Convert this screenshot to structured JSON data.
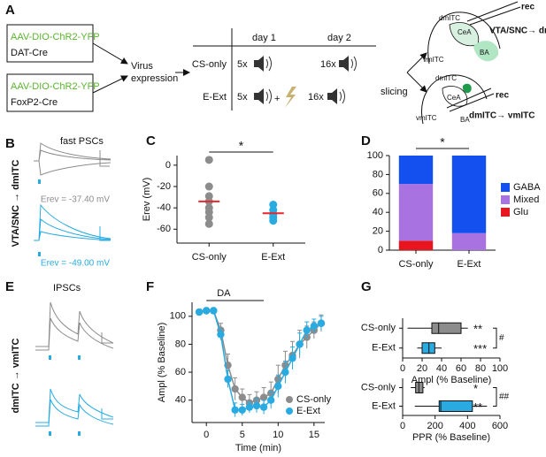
{
  "panels": [
    "A",
    "B",
    "C",
    "D",
    "E",
    "F",
    "G"
  ],
  "diagram": {
    "constructs": [
      {
        "virus": "AAV-DIO-ChR2-YFP",
        "line": "DAT-Cre"
      },
      {
        "virus": "AAV-DIO-ChR2-YFP",
        "line": "FoxP2-Cre"
      }
    ],
    "step": [
      "Virus",
      "expression"
    ],
    "table": {
      "columns": [
        "day 1",
        "day 2"
      ],
      "rows": [
        {
          "name": "CS-only",
          "cells": [
            "5x",
            "16x"
          ]
        },
        {
          "name": "E-Ext",
          "cells": [
            "5x",
            "16x"
          ],
          "plus": "+"
        }
      ]
    },
    "slicing": "slicing",
    "slices": [
      {
        "labels": [
          "dmITC",
          "CeA",
          "BA",
          "vmITC"
        ],
        "rec": "rec",
        "pathway": "VTA/SNC→ dmITC"
      },
      {
        "labels": [
          "dmITC",
          "CeA",
          "BA",
          "vmITC"
        ],
        "rec": "rec",
        "pathway": "dmITC→ vmITC"
      }
    ]
  },
  "traces": {
    "B": {
      "title": "fast PSCs",
      "pathway": "VTA/SNC → dmITC",
      "erev": [
        "Erev = -37.40 mV",
        "Erev = -49.00 mV"
      ]
    },
    "E": {
      "title": "IPSCs",
      "pathway": "dmITC → vmITC"
    }
  },
  "chart_data": [
    {
      "type": "strip",
      "ylabel": "Erev (mV)",
      "categories": [
        "CS-only",
        "E-Ext"
      ],
      "groups": [
        {
          "color": "#8c8c8c",
          "values": [
            5,
            -20,
            -29,
            -34,
            -40,
            -44,
            -49,
            -55
          ]
        },
        {
          "color": "#29abe2",
          "values": [
            -37,
            -42,
            -46,
            -49,
            -52
          ]
        }
      ],
      "means": [
        -34,
        -45
      ],
      "mean_color": "#e8262b",
      "ylim": [
        -73,
        9
      ],
      "yticks": [
        0,
        -20,
        -40,
        -60
      ],
      "significance": "*"
    },
    {
      "type": "stacked_bar",
      "categories": [
        "CS-only",
        "E-Ext"
      ],
      "series": [
        {
          "name": "GABA",
          "color": "#1450f0",
          "values": [
            30,
            82
          ]
        },
        {
          "name": "Mixed",
          "color": "#a873e0",
          "values": [
            60,
            18
          ]
        },
        {
          "name": "Glu",
          "color": "#e8141e",
          "values": [
            10,
            0
          ]
        }
      ],
      "ylim": [
        0,
        100
      ],
      "yticks": [
        0,
        20,
        40,
        60,
        80,
        100
      ],
      "significance": "*"
    },
    {
      "type": "line",
      "xlabel": "Time (min)",
      "ylabel": "Ampl (% Baseline)",
      "x": [
        -1,
        0,
        1,
        2,
        3,
        4,
        5,
        6,
        7,
        8,
        9,
        10,
        11,
        12,
        13,
        14,
        15,
        16
      ],
      "series": [
        {
          "name": "CS-only",
          "color": "#8c8c8c",
          "values": [
            103,
            104,
            104,
            90,
            65,
            48,
            42,
            38,
            40,
            42,
            45,
            55,
            65,
            72,
            80,
            85,
            90,
            95
          ],
          "errors": [
            2,
            2,
            2,
            5,
            8,
            8,
            6,
            6,
            6,
            7,
            8,
            10,
            10,
            10,
            10,
            8,
            6,
            6
          ]
        },
        {
          "name": "E-Ext",
          "color": "#29abe2",
          "values": [
            103,
            104,
            104,
            87,
            55,
            33,
            33,
            35,
            36,
            35,
            40,
            50,
            60,
            70,
            80,
            90,
            93,
            95
          ],
          "errors": [
            2,
            2,
            2,
            4,
            6,
            5,
            4,
            4,
            5,
            5,
            6,
            8,
            8,
            8,
            8,
            6,
            5,
            5
          ]
        }
      ],
      "xlim": [
        -2,
        16.5
      ],
      "xticks": [
        0,
        5,
        10,
        15
      ],
      "ylim": [
        24,
        110
      ],
      "yticks": [
        40,
        60,
        80,
        100
      ],
      "annotation": {
        "text": "DA",
        "x": [
          0,
          8
        ]
      }
    },
    {
      "type": "box",
      "xlabel": "Ampl (% Baseline)",
      "categories": [
        "CS-only",
        "E-Ext"
      ],
      "boxes": [
        {
          "color": "#8c8c8c",
          "whislo": 5,
          "q1": 30,
          "median": 37,
          "q3": 60,
          "whishi": 67
        },
        {
          "color": "#29abe2",
          "whislo": 15,
          "q1": 20,
          "median": 27,
          "q3": 33,
          "whishi": 40
        }
      ],
      "xlim": [
        0,
        100
      ],
      "xticks": [
        0,
        20,
        40,
        60,
        80,
        100
      ],
      "annotations": [
        "**",
        "***"
      ],
      "comparison": "#"
    },
    {
      "type": "box",
      "xlabel": "PPR (% Baseline)",
      "categories": [
        "CS-only",
        "E-Ext"
      ],
      "boxes": [
        {
          "color": "#8c8c8c",
          "whislo": 50,
          "q1": 80,
          "median": 100,
          "q3": 125,
          "whishi": 135
        },
        {
          "color": "#29abe2",
          "whislo": 75,
          "q1": 225,
          "median": 235,
          "q3": 430,
          "whishi": 520
        }
      ],
      "xlim": [
        0,
        600
      ],
      "xticks": [
        0,
        200,
        400,
        600
      ],
      "annotations": [
        "*",
        "**"
      ],
      "comparison": "##"
    }
  ]
}
